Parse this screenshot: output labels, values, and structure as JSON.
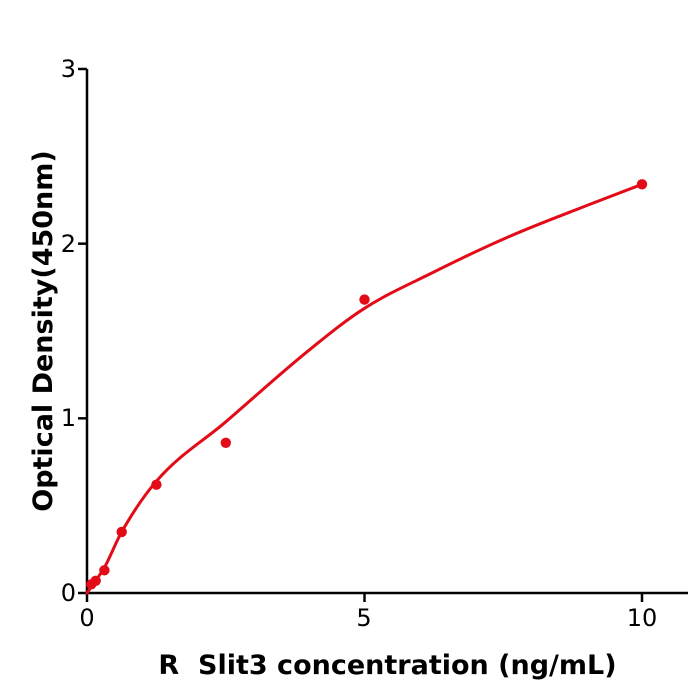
{
  "figure": {
    "background": "#ffffff",
    "axis_color": "#000000",
    "accent_color": "#e30b17"
  },
  "chart_data": {
    "type": "scatter",
    "title": "",
    "xlabel": "R  Slit3 concentration (ng/mL)",
    "ylabel": "Optical Density(450nm)",
    "xlim": [
      0,
      10.8
    ],
    "ylim": [
      0,
      3
    ],
    "x_ticks": [
      0,
      5,
      10
    ],
    "y_ticks": [
      0,
      1,
      2,
      3
    ],
    "grid": false,
    "legend": "none",
    "series": [
      {
        "name": "standard-points",
        "type": "scatter",
        "color": "#e30b17",
        "marker": "circle",
        "x": [
          0.078,
          0.156,
          0.313,
          0.625,
          1.25,
          2.5,
          5,
          10
        ],
        "y": [
          0.05,
          0.07,
          0.13,
          0.35,
          0.62,
          0.86,
          1.68,
          2.34
        ]
      },
      {
        "name": "fit-curve",
        "type": "line",
        "color": "#e30b17",
        "points": [
          [
            0,
            0.0
          ],
          [
            0.32,
            0.15
          ],
          [
            0.625,
            0.35
          ],
          [
            1.25,
            0.64
          ],
          [
            2.5,
            0.98
          ],
          [
            4.0,
            1.39
          ],
          [
            5.0,
            1.63
          ],
          [
            6.2,
            1.83
          ],
          [
            7.6,
            2.04
          ],
          [
            9.1,
            2.23
          ],
          [
            10.0,
            2.34
          ]
        ]
      }
    ]
  },
  "axes": {
    "tick_labels_x": [
      "0",
      "5",
      "10"
    ],
    "tick_labels_y": [
      "0",
      "1",
      "2",
      "3"
    ]
  }
}
